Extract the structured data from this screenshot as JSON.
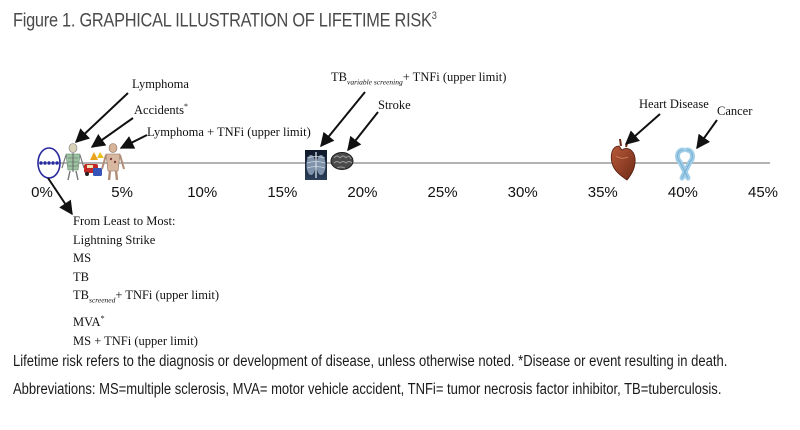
{
  "figure": {
    "title": "Figure 1. GRAPHICAL ILLUSTRATION OF LIFETIME RISK",
    "title_sup": "3"
  },
  "axis": {
    "min": 0,
    "max": 45,
    "ticks": [
      "0%",
      "5%",
      "10%",
      "15%",
      "20%",
      "25%",
      "30%",
      "35%",
      "40%",
      "45%"
    ]
  },
  "labels": {
    "lymphoma": "Lymphoma",
    "accidents": "Accidents",
    "accidents_sup": "*",
    "lymphoma_tnfi": "Lymphoma + TNFi (upper limit)",
    "tb_variable_main": "TB",
    "tb_variable_sub": "variable screening",
    "tb_variable_rest": "+ TNFi (upper limit)",
    "stroke": "Stroke",
    "heart_disease": "Heart Disease",
    "cancer": "Cancer"
  },
  "list": {
    "heading": "From Least to Most:",
    "lightning": "Lightning Strike",
    "ms": "MS",
    "tb": "TB",
    "tb_screened_main": "TB",
    "tb_screened_sub": "screened",
    "tb_screened_rest": "+ TNFi (upper limit)",
    "mva": "MVA",
    "mva_sup": "*",
    "ms_tnfi": "MS + TNFi (upper limit)"
  },
  "footnotes": {
    "line1": "Lifetime risk refers to the diagnosis or development of disease, unless otherwise noted.  *Disease or event resulting in death.",
    "line2": "Abbreviations: MS=multiple sclerosis, MVA= motor vehicle accident, TNFi= tumor necrosis factor inhibitor, TB=tuberculosis."
  },
  "colors": {
    "axis": "#9a9a9a",
    "arrow": "#111111",
    "ellipse": "#2a2aa0",
    "heart": "#8a3b22",
    "ribbon": "#9fcde8",
    "brain": "#3a3a3a",
    "lung": "#1c2c44"
  },
  "icons": [
    "small-events-cluster-icon",
    "skeleton-icon",
    "car-accident-icon",
    "body-icon",
    "chest-xray-icon",
    "brain-icon",
    "heart-icon",
    "cancer-ribbon-icon"
  ]
}
